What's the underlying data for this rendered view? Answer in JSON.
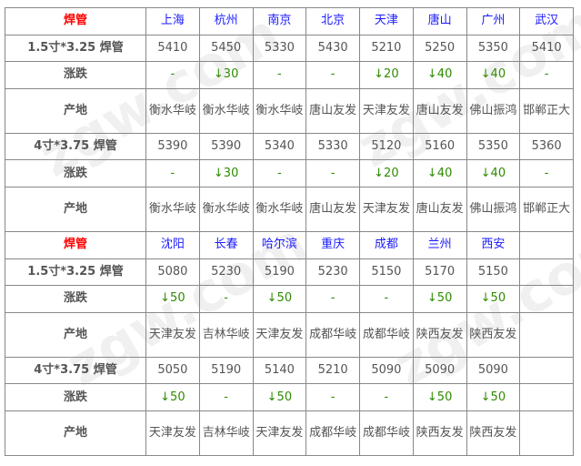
{
  "section1": {
    "header": "焊管",
    "cities": [
      "上海",
      "杭州",
      "南京",
      "北京",
      "天津",
      "唐山",
      "广州",
      "武汉"
    ],
    "rows": [
      {
        "label": "1.5寸*3.25 焊管",
        "type": "price",
        "values": [
          "5410",
          "5450",
          "5330",
          "5430",
          "5210",
          "5250",
          "5350",
          "5410"
        ]
      },
      {
        "label": "涨跌",
        "type": "change",
        "values": [
          "-",
          "↓30",
          "-",
          "-",
          "↓20",
          "↓40",
          "↓40",
          "-"
        ]
      },
      {
        "label": "产地",
        "type": "origin",
        "values": [
          "衡水华岐",
          "衡水华岐",
          "衡水华岐",
          "唐山友发",
          "天津友发",
          "唐山友发",
          "佛山振鸿",
          "邯郸正大"
        ]
      },
      {
        "label": "4寸*3.75 焊管",
        "type": "price",
        "values": [
          "5390",
          "5390",
          "5340",
          "5330",
          "5120",
          "5160",
          "5350",
          "5360"
        ]
      },
      {
        "label": "涨跌",
        "type": "change",
        "values": [
          "-",
          "↓30",
          "-",
          "-",
          "↓20",
          "↓40",
          "↓40",
          "-"
        ]
      },
      {
        "label": "产地",
        "type": "origin",
        "values": [
          "衡水华岐",
          "衡水华岐",
          "衡水华岐",
          "唐山友发",
          "天津友发",
          "唐山友发",
          "佛山振鸿",
          "邯郸正大"
        ]
      }
    ]
  },
  "section2": {
    "header": "焊管",
    "cities": [
      "沈阳",
      "长春",
      "哈尔滨",
      "重庆",
      "成都",
      "兰州",
      "西安",
      ""
    ],
    "rows": [
      {
        "label": "1.5寸*3.25 焊管",
        "type": "price",
        "values": [
          "5080",
          "5230",
          "5190",
          "5230",
          "5150",
          "5170",
          "5150",
          ""
        ]
      },
      {
        "label": "涨跌",
        "type": "change",
        "values": [
          "↓50",
          "-",
          "↓50",
          "-",
          "-",
          "↓50",
          "↓50",
          ""
        ]
      },
      {
        "label": "产地",
        "type": "origin",
        "values": [
          "天津友发",
          "吉林华岐",
          "天津友发",
          "成都华岐",
          "成都华岐",
          "陕西友发",
          "陕西友发",
          ""
        ]
      },
      {
        "label": "4寸*3.75 焊管",
        "type": "price",
        "values": [
          "5050",
          "5190",
          "5140",
          "5210",
          "5090",
          "5090",
          "5090",
          ""
        ]
      },
      {
        "label": "涨跌",
        "type": "change",
        "values": [
          "↓50",
          "-",
          "↓50",
          "-",
          "-",
          "↓50",
          "↓50",
          ""
        ]
      },
      {
        "label": "产地",
        "type": "origin",
        "values": [
          "天津友发",
          "吉林华岐",
          "天津友发",
          "成都华岐",
          "成都华岐",
          "陕西友发",
          "陕西友发",
          ""
        ]
      }
    ]
  },
  "watermark": "zgw.com 中国互联网百强企业",
  "colors": {
    "header": "#ff0000",
    "city": "#1a1aff",
    "change": "#2e8b00",
    "text": "#555555"
  }
}
